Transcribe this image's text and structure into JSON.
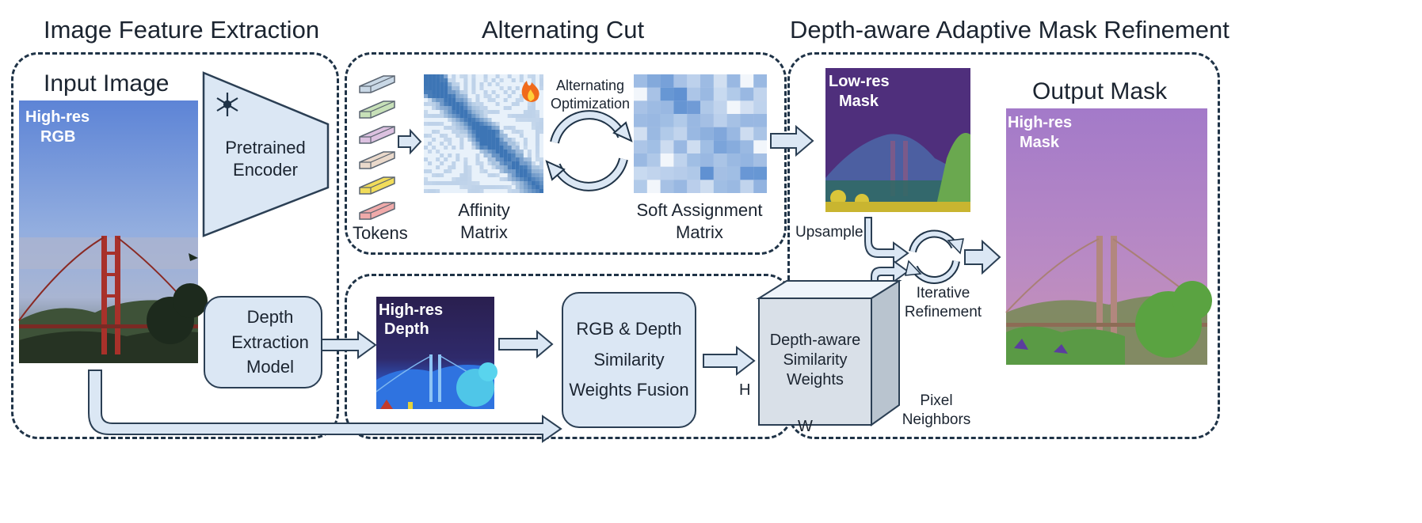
{
  "sections": {
    "feature_extraction": "Image Feature Extraction",
    "alternating_cut": "Alternating Cut",
    "mask_refinement": "Depth-aware Adaptive Mask Refinement"
  },
  "input_image": {
    "title": "Input Image",
    "overlay_line1": "High-res",
    "overlay_line2": "RGB"
  },
  "encoder": {
    "line1": "Pretrained",
    "line2": "Encoder"
  },
  "depth_model": {
    "line1": "Depth",
    "line2": "Extraction",
    "line3": "Model"
  },
  "tokens": {
    "label": "Tokens",
    "colors": [
      "#c9d8e6",
      "#c7e0b8",
      "#dcc1e0",
      "#ead9cb",
      "#f1dc5a",
      "#f0aaaa"
    ]
  },
  "affinity": {
    "line1": "Affinity",
    "line2": "Matrix"
  },
  "alternating": {
    "line1": "Alternating",
    "line2": "Optimization"
  },
  "soft_assignment": {
    "line1": "Soft Assignment",
    "line2": "Matrix"
  },
  "low_res_mask": {
    "line1": "Low-res",
    "line2": "Mask"
  },
  "upsample": "Upsample",
  "iterative": {
    "line1": "Iterative",
    "line2": "Refinement"
  },
  "output_mask": {
    "title": "Output Mask",
    "overlay_line1": "High-res",
    "overlay_line2": "Mask"
  },
  "depth_image": {
    "line1": "High-res",
    "line2": "Depth"
  },
  "fusion": {
    "line1": "RGB & Depth",
    "line2": "Similarity",
    "line3": "Weights Fusion"
  },
  "weights_cube": {
    "line1": "Depth-aware",
    "line2": "Similarity",
    "line3": "Weights",
    "h_label": "H",
    "w_label": "W",
    "pixel_line1": "Pixel",
    "pixel_line2": "Neighbors"
  },
  "colors": {
    "border": "#1f3347",
    "arrow_fill": "#dbe7f4",
    "box_fill": "#dbe7f4",
    "matrix_blue": "#1f5fa8"
  }
}
